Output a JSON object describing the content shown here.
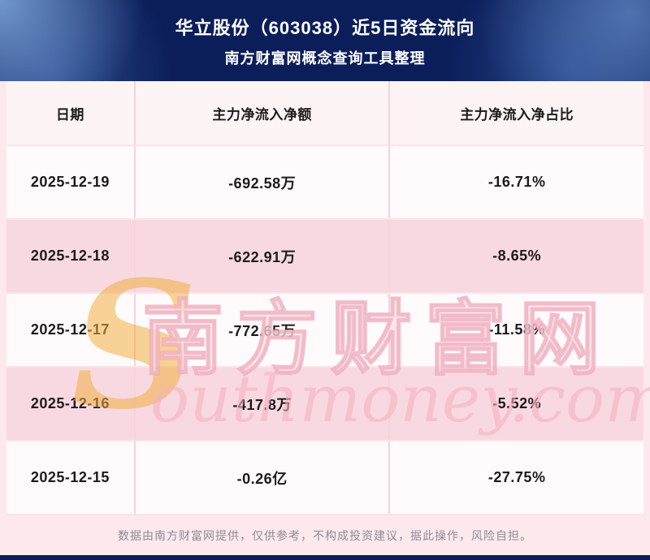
{
  "header": {
    "title": "华立股份（603038）近5日资金流向",
    "subtitle": "南方财富网概念查询工具整理"
  },
  "chart_data": {
    "type": "table",
    "title": "华立股份（603038）近5日资金流向",
    "columns": [
      "日期",
      "主力净流入净额",
      "主力净流入净占比"
    ],
    "rows": [
      [
        "2025-12-19",
        "-692.58万",
        "-16.71%"
      ],
      [
        "2025-12-18",
        "-622.91万",
        "-8.65%"
      ],
      [
        "2025-12-17",
        "-772.65万",
        "-11.58%"
      ],
      [
        "2025-12-16",
        "-417.8万",
        "-5.52%"
      ],
      [
        "2025-12-15",
        "-0.26亿",
        "-27.75%"
      ]
    ]
  },
  "watermark": {
    "initial": "S",
    "cn": "南方财富网",
    "en": "outhmoney.com"
  },
  "footer": {
    "disclaimer": "数据由南方财富网提供，仅供参考，不构成投资建议，据此操作，风险自担。"
  },
  "colors": {
    "banner_bg": "#0b1e5a",
    "page_bg": "#fde8ed",
    "row_light": "#fffbfc",
    "row_pink": "#f9d9e1",
    "divider_pink": "#f6d3dc",
    "watermark_gold": "#f1ae42",
    "watermark_pink": "#eea5b6",
    "footer_text": "#8d8d96",
    "text_dark": "#1b1b1b"
  }
}
